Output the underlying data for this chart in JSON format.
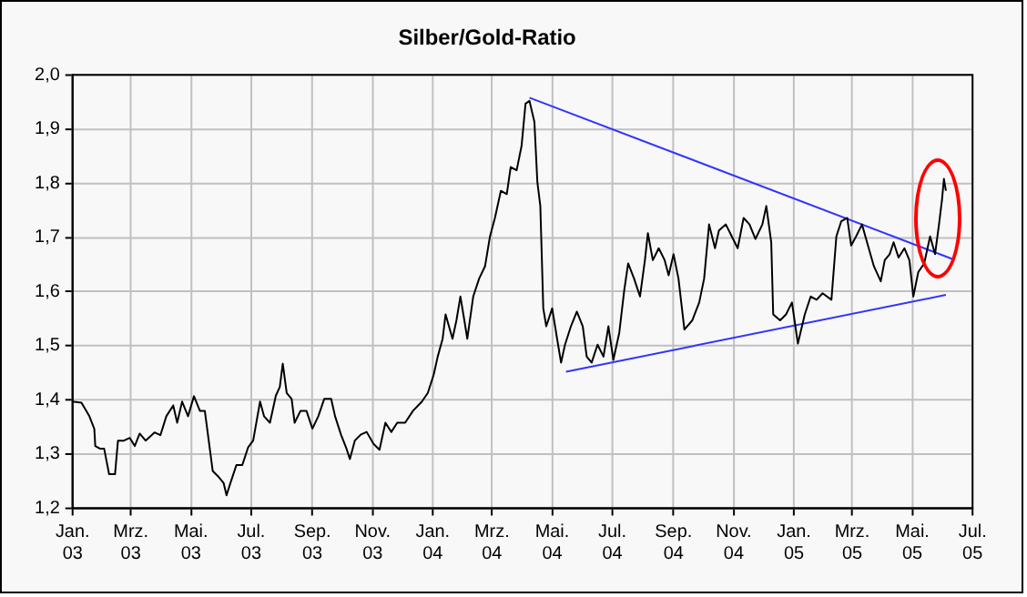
{
  "chart_data": {
    "type": "line",
    "title": "Silber/Gold-Ratio",
    "xlim": [
      "2003-01-01",
      "2005-07-01"
    ],
    "xticks": [
      {
        "value": "2003-01-01",
        "label": "Jan. 03"
      },
      {
        "value": "2003-03-01",
        "label": "Mrz. 03"
      },
      {
        "value": "2003-05-01",
        "label": "Mai. 03"
      },
      {
        "value": "2003-07-01",
        "label": "Jul. 03"
      },
      {
        "value": "2003-09-01",
        "label": "Sep. 03"
      },
      {
        "value": "2003-11-01",
        "label": "Nov. 03"
      },
      {
        "value": "2004-01-01",
        "label": "Jan. 04"
      },
      {
        "value": "2004-03-01",
        "label": "Mrz. 04"
      },
      {
        "value": "2004-05-01",
        "label": "Mai. 04"
      },
      {
        "value": "2004-07-01",
        "label": "Jul. 04"
      },
      {
        "value": "2004-09-01",
        "label": "Sep. 04"
      },
      {
        "value": "2004-11-01",
        "label": "Nov. 04"
      },
      {
        "value": "2005-01-01",
        "label": "Jan. 05"
      },
      {
        "value": "2005-03-01",
        "label": "Mrz. 05"
      },
      {
        "value": "2005-05-01",
        "label": "Mai. 05"
      },
      {
        "value": "2005-07-01",
        "label": "Jul. 05"
      }
    ],
    "ylim": [
      1.2,
      2.0
    ],
    "yticks": [
      {
        "value": 1.2,
        "label": "1,2"
      },
      {
        "value": 1.3,
        "label": "1,3"
      },
      {
        "value": 1.4,
        "label": "1,4"
      },
      {
        "value": 1.5,
        "label": "1,5"
      },
      {
        "value": 1.6,
        "label": "1,6"
      },
      {
        "value": 1.7,
        "label": "1,7"
      },
      {
        "value": 1.8,
        "label": "1,8"
      },
      {
        "value": 1.9,
        "label": "1,9"
      },
      {
        "value": 2.0,
        "label": "2,0"
      }
    ],
    "grid": true,
    "legend": false,
    "marker": "none",
    "line_style": "solid",
    "series": [
      {
        "color": "#000000",
        "x": [
          "2003-01-01",
          "2003-01-10",
          "2003-01-18",
          "2003-01-23",
          "2003-01-24",
          "2003-01-29",
          "2003-02-02",
          "2003-02-07",
          "2003-02-13",
          "2003-02-16",
          "2003-02-22",
          "2003-02-28",
          "2003-03-05",
          "2003-03-10",
          "2003-03-16",
          "2003-03-25",
          "2003-03-31",
          "2003-04-06",
          "2003-04-13",
          "2003-04-17",
          "2003-04-22",
          "2003-04-28",
          "2003-05-04",
          "2003-05-10",
          "2003-05-15",
          "2003-05-23",
          "2003-05-29",
          "2003-06-03",
          "2003-06-06",
          "2003-06-10",
          "2003-06-16",
          "2003-06-22",
          "2003-06-28",
          "2003-07-03",
          "2003-07-10",
          "2003-07-14",
          "2003-07-20",
          "2003-07-26",
          "2003-07-30",
          "2003-08-02",
          "2003-08-06",
          "2003-08-11",
          "2003-08-14",
          "2003-08-20",
          "2003-08-26",
          "2003-09-01",
          "2003-09-07",
          "2003-09-13",
          "2003-09-20",
          "2003-09-24",
          "2003-09-30",
          "2003-10-05",
          "2003-10-09",
          "2003-10-14",
          "2003-10-20",
          "2003-10-26",
          "2003-11-02",
          "2003-11-08",
          "2003-11-14",
          "2003-11-20",
          "2003-11-26",
          "2003-12-04",
          "2003-12-12",
          "2003-12-21",
          "2003-12-27",
          "2004-01-02",
          "2004-01-06",
          "2004-01-11",
          "2004-01-14",
          "2004-01-21",
          "2004-01-25",
          "2004-01-29",
          "2004-02-02",
          "2004-02-05",
          "2004-02-11",
          "2004-02-17",
          "2004-02-23",
          "2004-02-28",
          "2004-03-04",
          "2004-03-10",
          "2004-03-16",
          "2004-03-20",
          "2004-03-26",
          "2004-03-31",
          "2004-04-04",
          "2004-04-08",
          "2004-04-13",
          "2004-04-16",
          "2004-04-19",
          "2004-04-22",
          "2004-04-25",
          "2004-05-01",
          "2004-05-06",
          "2004-05-10",
          "2004-05-14",
          "2004-05-20",
          "2004-05-26",
          "2004-06-01",
          "2004-06-05",
          "2004-06-10",
          "2004-06-16",
          "2004-06-22",
          "2004-06-27",
          "2004-07-02",
          "2004-07-08",
          "2004-07-13",
          "2004-07-17",
          "2004-07-23",
          "2004-07-29",
          "2004-08-03",
          "2004-08-06",
          "2004-08-11",
          "2004-08-17",
          "2004-08-23",
          "2004-08-27",
          "2004-09-01",
          "2004-09-06",
          "2004-09-12",
          "2004-09-20",
          "2004-09-27",
          "2004-10-02",
          "2004-10-07",
          "2004-10-13",
          "2004-10-17",
          "2004-10-24",
          "2004-10-30",
          "2004-11-05",
          "2004-11-11",
          "2004-11-17",
          "2004-11-23",
          "2004-11-30",
          "2004-12-04",
          "2004-12-09",
          "2004-12-11",
          "2004-12-18",
          "2004-12-24",
          "2004-12-30",
          "2005-01-05",
          "2005-01-12",
          "2005-01-18",
          "2005-01-24",
          "2005-01-30",
          "2005-02-08",
          "2005-02-13",
          "2005-02-18",
          "2005-02-24",
          "2005-02-28",
          "2005-03-05",
          "2005-03-11",
          "2005-03-17",
          "2005-03-23",
          "2005-03-30",
          "2005-04-03",
          "2005-04-08",
          "2005-04-12",
          "2005-04-17",
          "2005-04-23",
          "2005-04-28",
          "2005-05-02",
          "2005-05-07",
          "2005-05-13",
          "2005-05-19",
          "2005-05-24",
          "2005-05-28",
          "2005-05-31",
          "2005-06-02",
          "2005-06-04"
        ],
        "values": [
          1.397,
          1.395,
          1.37,
          1.347,
          1.315,
          1.31,
          1.31,
          1.263,
          1.263,
          1.325,
          1.325,
          1.33,
          1.315,
          1.338,
          1.325,
          1.34,
          1.335,
          1.37,
          1.39,
          1.358,
          1.397,
          1.37,
          1.407,
          1.38,
          1.38,
          1.269,
          1.258,
          1.247,
          1.224,
          1.247,
          1.28,
          1.28,
          1.313,
          1.325,
          1.397,
          1.37,
          1.358,
          1.408,
          1.424,
          1.467,
          1.413,
          1.402,
          1.358,
          1.38,
          1.38,
          1.347,
          1.37,
          1.402,
          1.402,
          1.37,
          1.336,
          1.313,
          1.291,
          1.325,
          1.336,
          1.341,
          1.319,
          1.308,
          1.358,
          1.341,
          1.358,
          1.358,
          1.38,
          1.397,
          1.413,
          1.447,
          1.48,
          1.513,
          1.558,
          1.513,
          1.547,
          1.591,
          1.547,
          1.513,
          1.591,
          1.624,
          1.647,
          1.702,
          1.736,
          1.786,
          1.78,
          1.83,
          1.824,
          1.869,
          1.947,
          1.952,
          1.913,
          1.802,
          1.758,
          1.569,
          1.536,
          1.569,
          1.513,
          1.469,
          1.502,
          1.536,
          1.563,
          1.536,
          1.48,
          1.469,
          1.502,
          1.48,
          1.536,
          1.474,
          1.524,
          1.602,
          1.652,
          1.624,
          1.591,
          1.658,
          1.708,
          1.658,
          1.68,
          1.658,
          1.63,
          1.669,
          1.624,
          1.53,
          1.547,
          1.58,
          1.624,
          1.724,
          1.68,
          1.713,
          1.724,
          1.702,
          1.68,
          1.736,
          1.724,
          1.697,
          1.724,
          1.758,
          1.691,
          1.558,
          1.547,
          1.558,
          1.58,
          1.504,
          1.558,
          1.591,
          1.585,
          1.597,
          1.585,
          1.702,
          1.73,
          1.736,
          1.685,
          1.702,
          1.724,
          1.685,
          1.647,
          1.619,
          1.658,
          1.669,
          1.691,
          1.663,
          1.68,
          1.658,
          1.591,
          1.636,
          1.652,
          1.702,
          1.669,
          1.724,
          1.769,
          1.808,
          1.786
        ]
      },
      {
        "color": "#3333ff",
        "x": [
          "2004-04-08",
          "2005-06-11"
        ],
        "values": [
          1.958,
          1.66
        ]
      },
      {
        "color": "#3333ff",
        "x": [
          "2004-05-15",
          "2005-06-04"
        ],
        "values": [
          1.452,
          1.594
        ]
      }
    ]
  }
}
